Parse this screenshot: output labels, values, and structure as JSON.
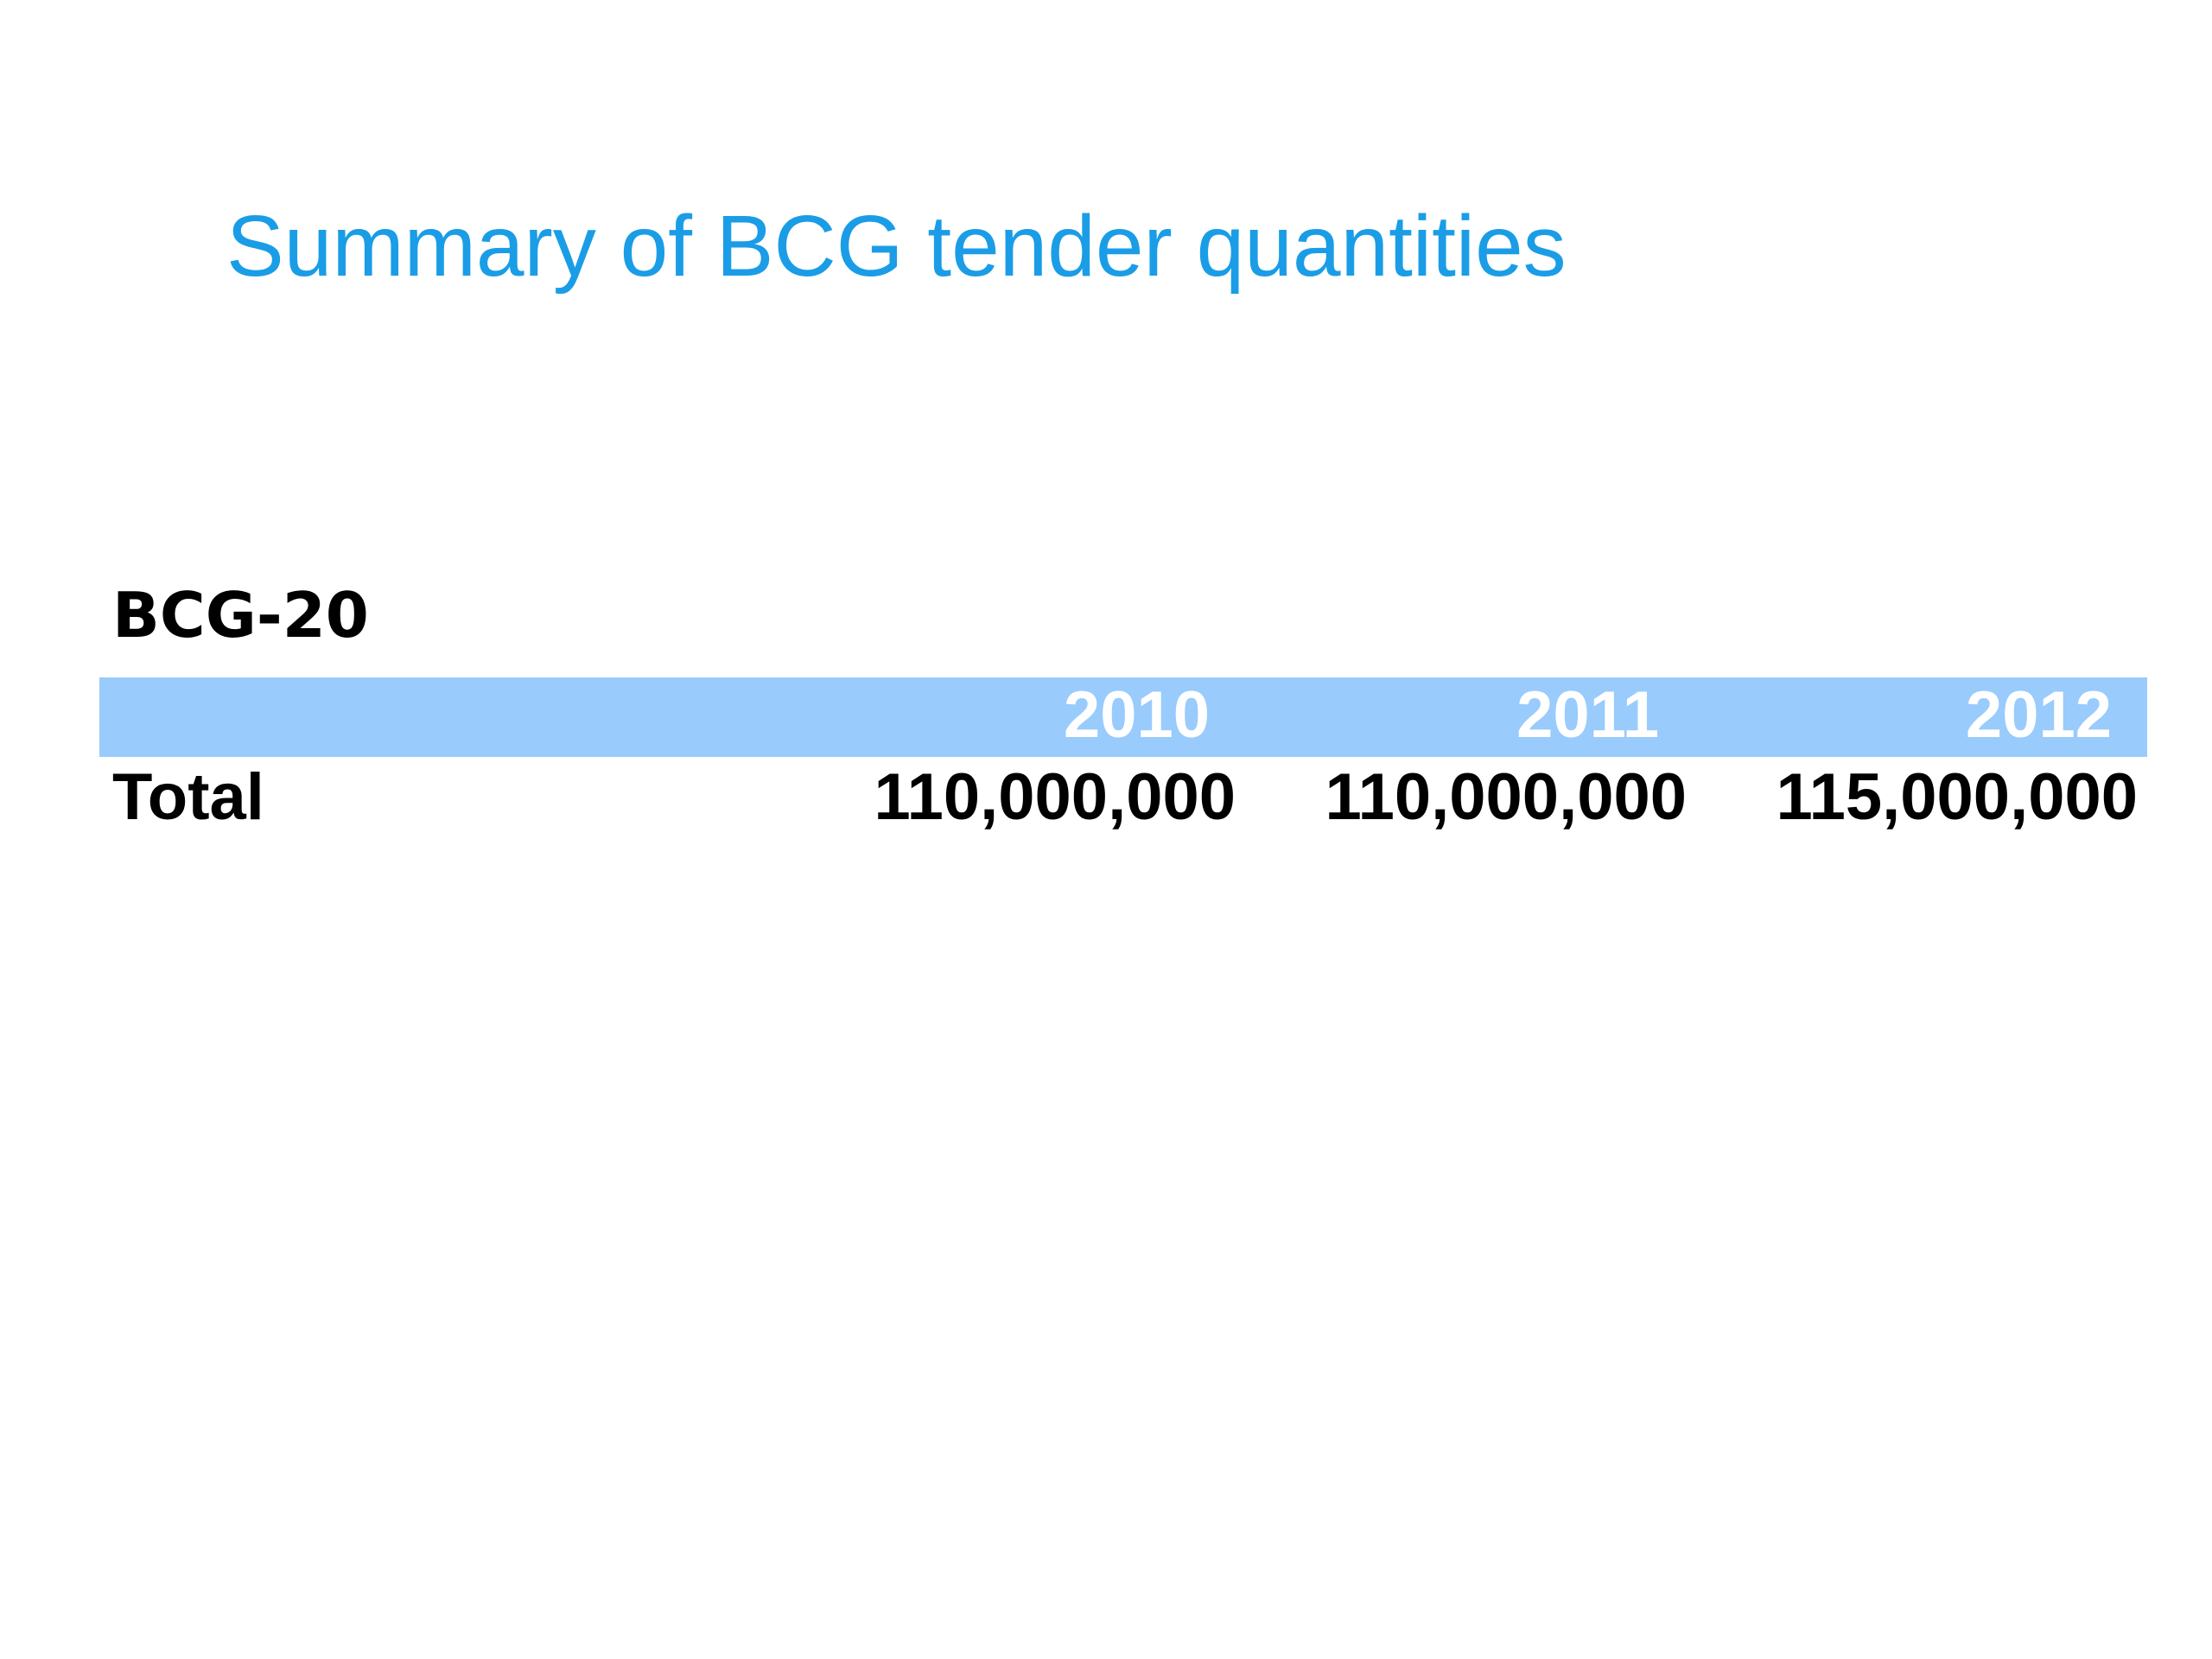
{
  "slide": {
    "title": "Summary of BCG tender quantities"
  },
  "table": {
    "section_label": "BCG-20",
    "columns": [
      "2010",
      "2011",
      "2012"
    ],
    "rows": [
      {
        "label": "Total",
        "values": [
          "110,000,000",
          "110,000,000",
          "115,000,000"
        ]
      }
    ],
    "header_color": "#99cbfd",
    "header_text_color": "#ffffff"
  },
  "colors": {
    "title": "#1a9de6",
    "background": "#ffffff",
    "text": "#000000"
  }
}
